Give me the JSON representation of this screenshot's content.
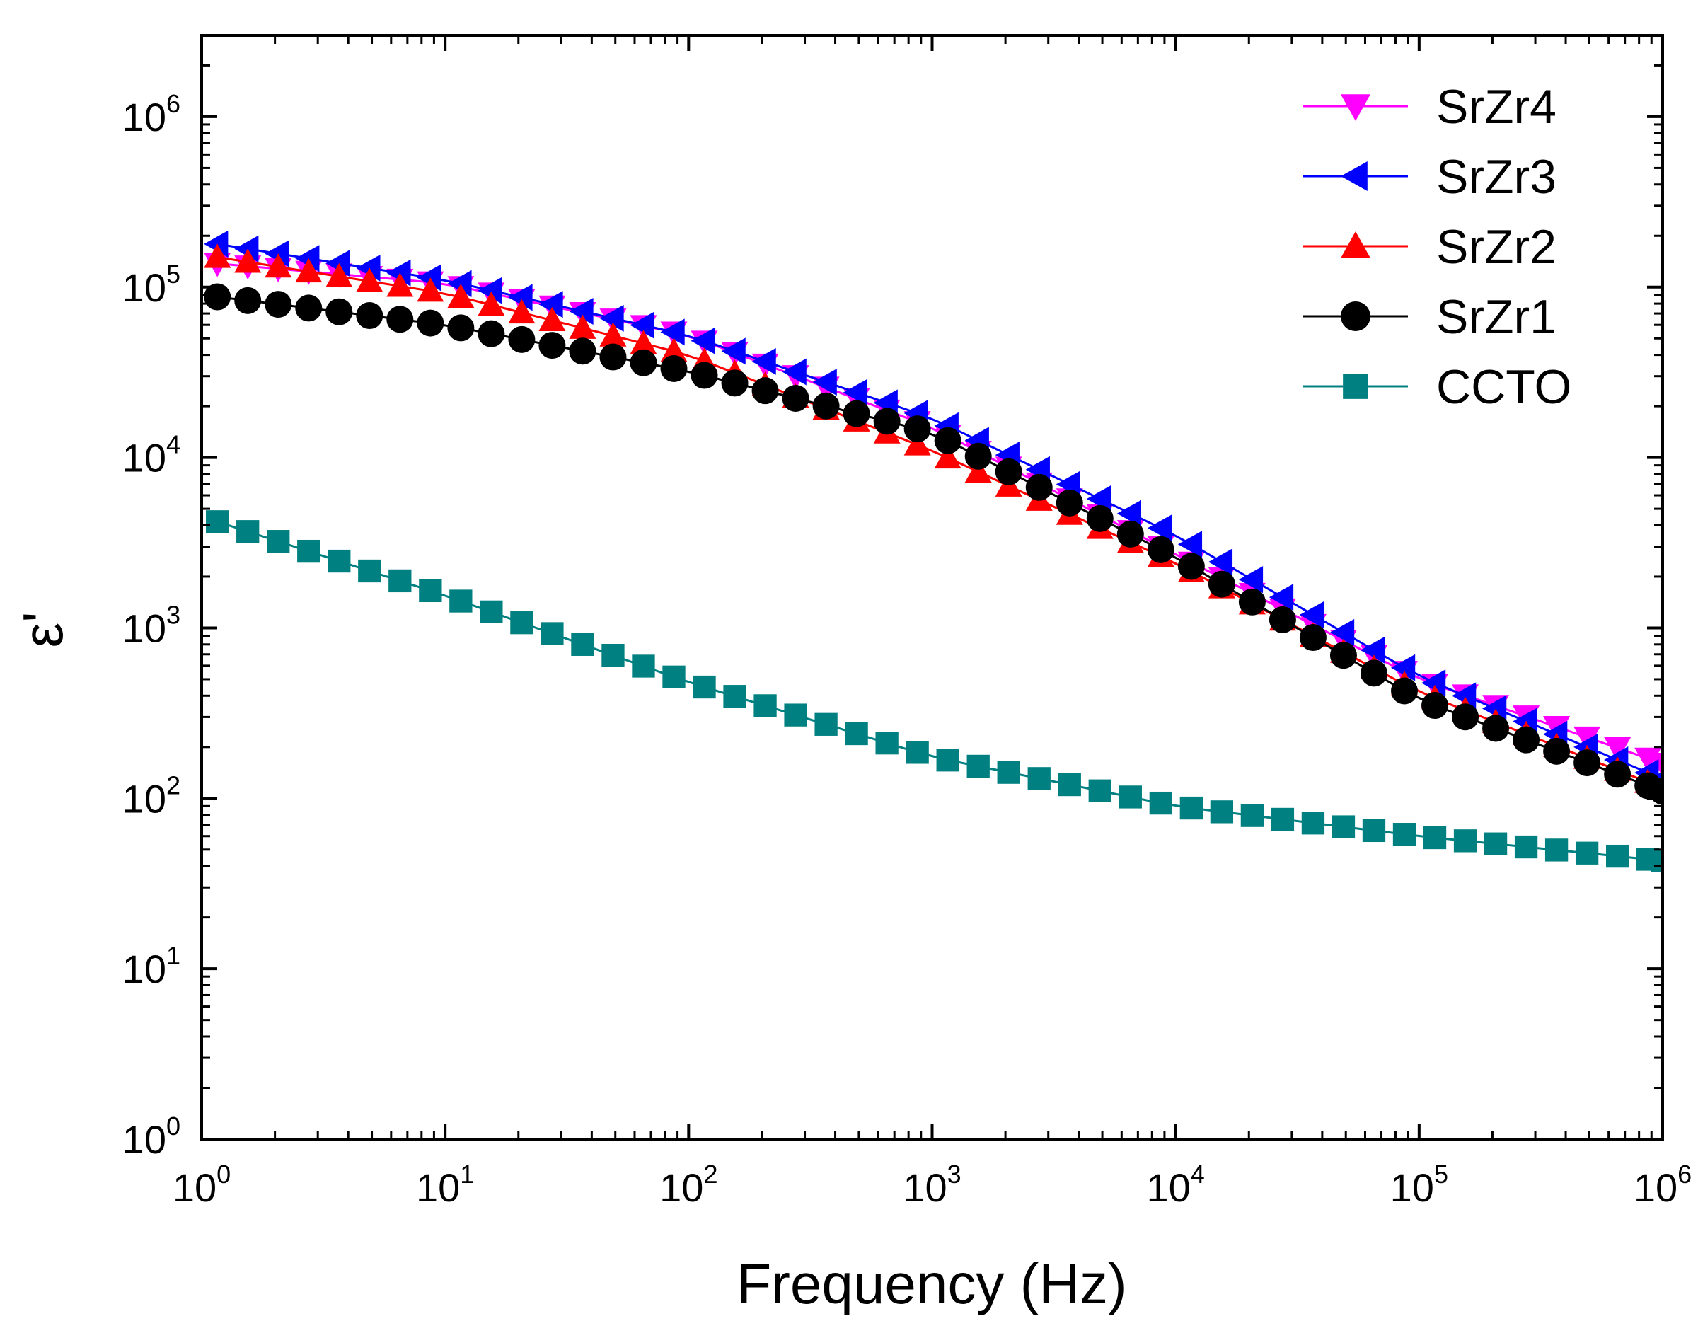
{
  "chart_data": {
    "type": "scatter",
    "xscale": "log",
    "yscale": "log",
    "xlabel": "Frequency (Hz)",
    "ylabel": "ε'",
    "xlim": [
      1,
      1000000
    ],
    "ylim": [
      1,
      3000000
    ],
    "x_ticks": [
      {
        "base": "10",
        "exp": "0",
        "value": 1
      },
      {
        "base": "10",
        "exp": "1",
        "value": 10
      },
      {
        "base": "10",
        "exp": "2",
        "value": 100
      },
      {
        "base": "10",
        "exp": "3",
        "value": 1000
      },
      {
        "base": "10",
        "exp": "4",
        "value": 10000
      },
      {
        "base": "10",
        "exp": "5",
        "value": 100000
      },
      {
        "base": "10",
        "exp": "6",
        "value": 1000000
      }
    ],
    "y_ticks": [
      {
        "base": "10",
        "exp": "0",
        "value": 1
      },
      {
        "base": "10",
        "exp": "1",
        "value": 10
      },
      {
        "base": "10",
        "exp": "2",
        "value": 100
      },
      {
        "base": "10",
        "exp": "3",
        "value": 1000
      },
      {
        "base": "10",
        "exp": "4",
        "value": 10000
      },
      {
        "base": "10",
        "exp": "5",
        "value": 100000
      },
      {
        "base": "10",
        "exp": "6",
        "value": 1000000
      }
    ],
    "legend_position": "top-right",
    "series": [
      {
        "name": "SrZr4",
        "color": "#ff00ff",
        "marker": "triangle-down",
        "x": [
          1.16,
          1000000
        ],
        "y": [
          140000,
          160
        ],
        "knots": [
          [
            0,
            140000
          ],
          [
            1,
            105000
          ],
          [
            2,
            52000
          ],
          [
            3,
            15000
          ],
          [
            4,
            2700
          ],
          [
            5,
            500
          ],
          [
            6,
            160
          ]
        ]
      },
      {
        "name": "SrZr3",
        "color": "#0000ff",
        "marker": "triangle-left",
        "x": [
          1.16,
          1000000
        ],
        "y": [
          180000,
          130
        ],
        "knots": [
          [
            0,
            185000
          ],
          [
            1,
            110000
          ],
          [
            2,
            52000
          ],
          [
            3,
            17000
          ],
          [
            4,
            3500
          ],
          [
            5,
            520
          ],
          [
            6,
            130
          ]
        ]
      },
      {
        "name": "SrZr2",
        "color": "#ff0000",
        "marker": "triangle-up",
        "x": [
          1.16,
          1000000
        ],
        "y": [
          155000,
          115
        ],
        "knots": [
          [
            0,
            155000
          ],
          [
            1,
            92000
          ],
          [
            2,
            40000
          ],
          [
            3,
            11000
          ],
          [
            4,
            2400
          ],
          [
            5,
            420
          ],
          [
            6,
            115
          ]
        ]
      },
      {
        "name": "SrZr1",
        "color": "#000000",
        "marker": "circle",
        "x": [
          1.16,
          1000000
        ],
        "y": [
          90000,
          110
        ],
        "knots": [
          [
            0,
            90000
          ],
          [
            1,
            60000
          ],
          [
            2,
            32000
          ],
          [
            3,
            14000
          ],
          [
            4,
            2600
          ],
          [
            5,
            380
          ],
          [
            6,
            110
          ]
        ]
      },
      {
        "name": "CCTO",
        "color": "#008080",
        "marker": "square",
        "x": [
          1.16,
          1000000
        ],
        "y": [
          4500,
          43
        ],
        "knots": [
          [
            0,
            4500
          ],
          [
            1,
            1550
          ],
          [
            2,
            480
          ],
          [
            3,
            175
          ],
          [
            4,
            90
          ],
          [
            5,
            60
          ],
          [
            6,
            43
          ]
        ]
      }
    ],
    "points_per_decade": 8
  }
}
